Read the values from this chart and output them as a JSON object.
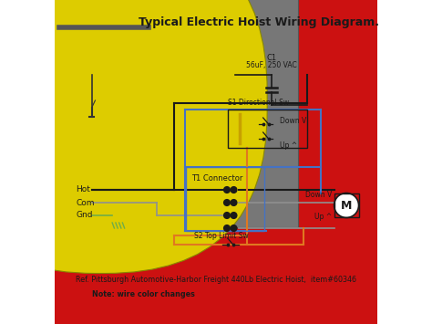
{
  "title": "Typical Electric Hoist Wiring Diagram.",
  "ref_text": "Ref. Pittsburgh Automotive-Harbor Freight 440Lb Electric Hoist,  item#60346",
  "note_text": "Note: wire color changes",
  "bg_color": "#ffffff",
  "title_fontsize": 9,
  "labels": {
    "c1": "C1",
    "c1_sub": "56uF, 250 VAC",
    "s1": "S1 Directional Sw",
    "s2": "S2 Top Limit Sw",
    "t1": "T1 Connector",
    "down_v_top": "Down V",
    "up_top": "Up ^",
    "down_v_bot": "Down V",
    "up_bot": "Up ^",
    "hot": "Hot",
    "com": "Com",
    "gnd": "Gnd",
    "motor": "M"
  },
  "colors": {
    "black": "#1a1a1a",
    "gray": "#909090",
    "blue": "#4472c4",
    "orange": "#e07820",
    "yellow": "#d4b800",
    "green": "#70ad47",
    "white": "#ffffff",
    "dark_gray": "#555555",
    "red": "#cc2222"
  }
}
